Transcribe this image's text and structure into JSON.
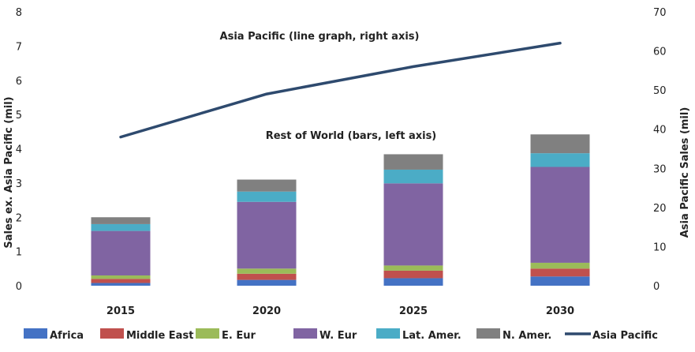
{
  "chart_data": {
    "type": "bar",
    "stacked": true,
    "categories": [
      "2015",
      "2020",
      "2025",
      "2030"
    ],
    "y_left": {
      "label": "Sales ex. Asia Pacific (mil)",
      "min": 0,
      "max": 8,
      "ticks": [
        "0",
        "1",
        "2",
        "3",
        "4",
        "5",
        "6",
        "7",
        "8"
      ]
    },
    "y_right": {
      "label": "Asia Pacific Sales (mil)",
      "min": 0,
      "max": 70,
      "ticks": [
        "0",
        "10",
        "20",
        "30",
        "40",
        "50",
        "60",
        "70"
      ]
    },
    "series": [
      {
        "name": "Africa",
        "color": "#4472C4",
        "values": [
          0.08,
          0.17,
          0.22,
          0.27
        ]
      },
      {
        "name": "Middle East",
        "color": "#C0504D",
        "values": [
          0.12,
          0.18,
          0.22,
          0.23
        ]
      },
      {
        "name": "E. Eur",
        "color": "#9BBB59",
        "values": [
          0.1,
          0.15,
          0.15,
          0.17
        ]
      },
      {
        "name": "W. Eur",
        "color": "#8064A2",
        "values": [
          1.3,
          1.95,
          2.4,
          2.8
        ]
      },
      {
        "name": "Lat. Amer.",
        "color": "#4BACC6",
        "values": [
          0.2,
          0.3,
          0.4,
          0.4
        ]
      },
      {
        "name": "N. Amer.",
        "color": "#808080",
        "values": [
          0.2,
          0.35,
          0.45,
          0.55
        ]
      }
    ],
    "line_series": {
      "name": "Asia Pacific",
      "color": "#2E4A6E",
      "axis": "right",
      "values": [
        38,
        49,
        56,
        62
      ]
    },
    "annotations": [
      "Asia  Pacific (line graph, right axis)",
      "Rest of World (bars, left axis)"
    ],
    "grid": false,
    "legend_position": "bottom"
  }
}
